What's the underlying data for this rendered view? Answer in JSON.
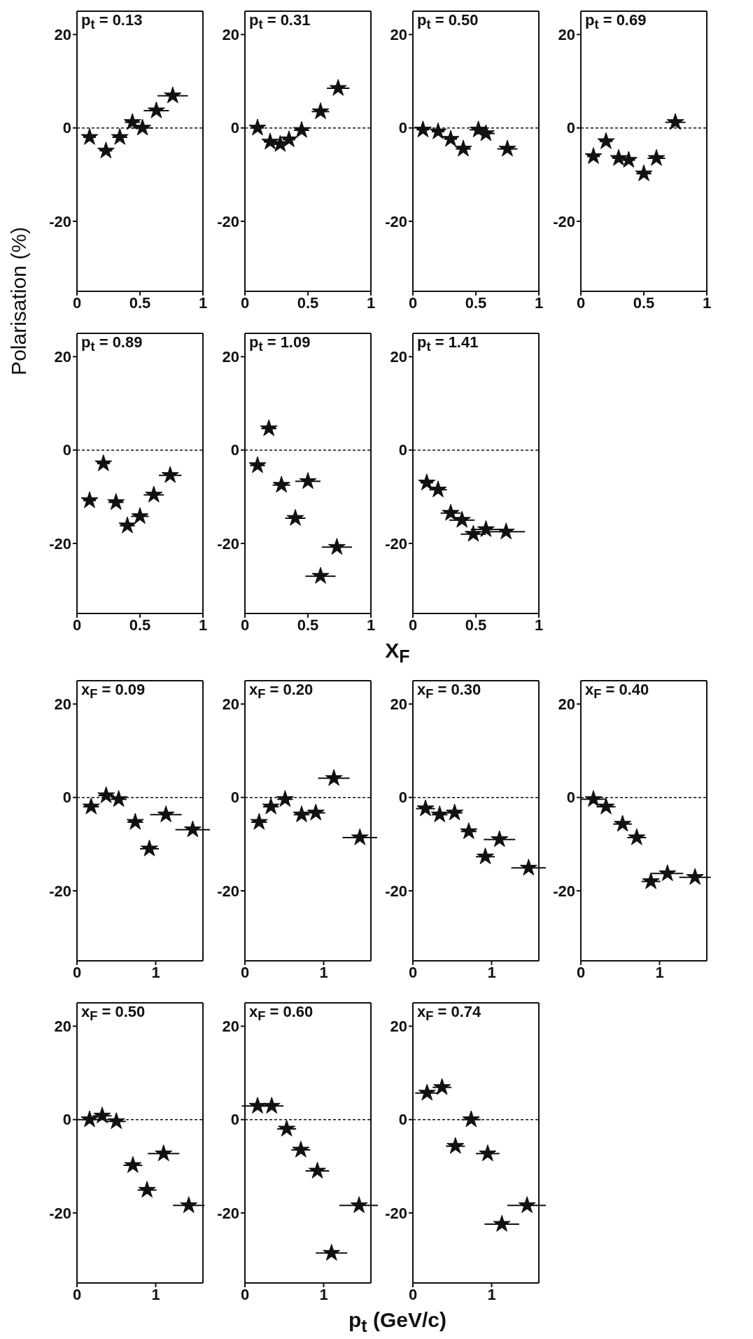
{
  "chart_data": [
    {
      "type": "scatter",
      "title": "p$_{t}$ = 0.13",
      "ylabel": "Polarisation (%)",
      "x": [
        0.1,
        0.23,
        0.34,
        0.44,
        0.52,
        0.63,
        0.76
      ],
      "values": [
        -2,
        -4.9,
        -2,
        1.2,
        0,
        3.7,
        6.9
      ],
      "xerrors": [
        0.05,
        0.05,
        0.06,
        0.06,
        0.08,
        0.1,
        0.12
      ],
      "color": "#111111",
      "marker": "star",
      "xlim": [
        0,
        1
      ],
      "ylim": [
        -35,
        25
      ],
      "xticks": [
        0,
        0.5,
        1
      ],
      "yticks": [
        20,
        0,
        -20
      ],
      "ref_lines": [
        {
          "axis": "y",
          "value": 0,
          "line_style": "dashed"
        }
      ]
    },
    {
      "type": "scatter",
      "title": "p$_{t}$ = 0.31",
      "x": [
        0.1,
        0.2,
        0.28,
        0.35,
        0.45,
        0.6,
        0.74
      ],
      "values": [
        0,
        -3,
        -3.5,
        -2.5,
        -0.5,
        3.5,
        8.5
      ],
      "xerrors": [
        0.05,
        0.05,
        0.05,
        0.05,
        0.06,
        0.07,
        0.09
      ],
      "color": "#111111",
      "marker": "star",
      "xlim": [
        0,
        1
      ],
      "ylim": [
        -35,
        25
      ],
      "xticks": [
        0,
        0.5,
        1
      ],
      "yticks": [
        20,
        0,
        -20
      ],
      "ref_lines": [
        {
          "axis": "y",
          "value": 0,
          "line_style": "dashed"
        }
      ]
    },
    {
      "type": "scatter",
      "title": "p$_{t}$ = 0.50",
      "x": [
        0.08,
        0.2,
        0.3,
        0.4,
        0.52,
        0.58,
        0.75
      ],
      "values": [
        -0.4,
        -0.8,
        -2.4,
        -4.5,
        -0.4,
        -1.2,
        -4.5
      ],
      "xerrors": [
        0.05,
        0.05,
        0.05,
        0.06,
        0.07,
        0.07,
        0.08
      ],
      "color": "#111111",
      "marker": "star",
      "xlim": [
        0,
        1
      ],
      "ylim": [
        -35,
        25
      ],
      "xticks": [
        0,
        0.5,
        1
      ],
      "yticks": [
        20,
        0,
        -20
      ],
      "ref_lines": [
        {
          "axis": "y",
          "value": 0,
          "line_style": "dashed"
        }
      ]
    },
    {
      "type": "scatter",
      "title": "p$_{t}$ = 0.69",
      "x": [
        0.1,
        0.2,
        0.3,
        0.38,
        0.5,
        0.6,
        0.75
      ],
      "values": [
        -6.1,
        -2.9,
        -6.5,
        -6.9,
        -9.8,
        -6.5,
        1.2
      ],
      "xerrors": [
        0.05,
        0.05,
        0.05,
        0.05,
        0.06,
        0.07,
        0.08
      ],
      "color": "#111111",
      "marker": "star",
      "xlim": [
        0,
        1
      ],
      "ylim": [
        -35,
        25
      ],
      "xticks": [
        0,
        0.5,
        1
      ],
      "yticks": [
        20,
        0,
        -20
      ],
      "ref_lines": [
        {
          "axis": "y",
          "value": 0,
          "line_style": "dashed"
        }
      ]
    },
    {
      "type": "scatter",
      "title": "p$_{t}$ = 0.89",
      "x": [
        0.1,
        0.21,
        0.31,
        0.4,
        0.5,
        0.61,
        0.74
      ],
      "values": [
        -10.8,
        -2.9,
        -11.2,
        -16.2,
        -14.2,
        -9.6,
        -5.4
      ],
      "xerrors": [
        0.05,
        0.05,
        0.06,
        0.06,
        0.07,
        0.08,
        0.09
      ],
      "color": "#111111",
      "marker": "star",
      "xlim": [
        0,
        1
      ],
      "ylim": [
        -35,
        25
      ],
      "xticks": [
        0,
        0.5,
        1
      ],
      "yticks": [
        20,
        0,
        -20
      ],
      "ref_lines": [
        {
          "axis": "y",
          "value": 0,
          "line_style": "dashed"
        }
      ]
    },
    {
      "type": "scatter",
      "title": "p$_{t}$ = 1.09",
      "xlabel": "X$_{F}$",
      "x": [
        0.1,
        0.19,
        0.29,
        0.4,
        0.5,
        0.6,
        0.73
      ],
      "values": [
        -3.3,
        4.6,
        -7.5,
        -14.6,
        -6.7,
        -27,
        -20.8
      ],
      "xerrors": [
        0.06,
        0.06,
        0.07,
        0.08,
        0.1,
        0.12,
        0.12
      ],
      "color": "#111111",
      "marker": "star",
      "xlim": [
        0,
        1
      ],
      "ylim": [
        -35,
        25
      ],
      "xticks": [
        0,
        0.5,
        1
      ],
      "yticks": [
        20,
        0,
        -20
      ],
      "ref_lines": [
        {
          "axis": "y",
          "value": 0,
          "line_style": "dashed"
        }
      ]
    },
    {
      "type": "scatter",
      "title": "p$_{t}$ = 1.41",
      "x": [
        0.11,
        0.2,
        0.3,
        0.39,
        0.48,
        0.58,
        0.74
      ],
      "values": [
        -7,
        -8.5,
        -13.5,
        -15,
        -18,
        -17,
        -17.5
      ],
      "xerrors": [
        0.05,
        0.07,
        0.08,
        0.1,
        0.1,
        0.12,
        0.15
      ],
      "color": "#111111",
      "marker": "star",
      "xlim": [
        0,
        1
      ],
      "ylim": [
        -35,
        25
      ],
      "xticks": [
        0,
        0.5,
        1
      ],
      "yticks": [
        20,
        0,
        -20
      ],
      "ref_lines": [
        {
          "axis": "y",
          "value": 0,
          "line_style": "dashed"
        }
      ]
    },
    {
      "type": "scatter",
      "title": "x$_{F}$ = 0.09",
      "x": [
        0.18,
        0.37,
        0.53,
        0.74,
        0.92,
        1.13,
        1.47
      ],
      "values": [
        -2,
        0.4,
        -0.4,
        -5.3,
        -11,
        -3.7,
        -6.9
      ],
      "xerrors": [
        0.1,
        0.1,
        0.1,
        0.1,
        0.12,
        0.2,
        0.22
      ],
      "color": "#111111",
      "marker": "star",
      "xlim": [
        0,
        1.6
      ],
      "ylim": [
        -35,
        25
      ],
      "xticks": [
        0,
        1
      ],
      "yticks": [
        20,
        0,
        -20
      ],
      "ref_lines": [
        {
          "axis": "y",
          "value": 0,
          "line_style": "dashed"
        }
      ]
    },
    {
      "type": "scatter",
      "title": "x$_{F}$ = 0.20",
      "x": [
        0.18,
        0.33,
        0.51,
        0.72,
        0.9,
        1.13,
        1.46
      ],
      "values": [
        -5.3,
        -2,
        -0.4,
        -3.7,
        -3.3,
        4.1,
        -8.6
      ],
      "xerrors": [
        0.1,
        0.1,
        0.1,
        0.1,
        0.12,
        0.2,
        0.22
      ],
      "color": "#111111",
      "marker": "star",
      "xlim": [
        0,
        1.6
      ],
      "ylim": [
        -35,
        25
      ],
      "xticks": [
        0,
        1
      ],
      "yticks": [
        20,
        0,
        -20
      ],
      "ref_lines": [
        {
          "axis": "y",
          "value": 0,
          "line_style": "dashed"
        }
      ]
    },
    {
      "type": "scatter",
      "title": "x$_{F}$ = 0.30",
      "x": [
        0.16,
        0.34,
        0.53,
        0.71,
        0.92,
        1.1,
        1.47
      ],
      "values": [
        -2.4,
        -3.7,
        -3.3,
        -7.3,
        -12.7,
        -9,
        -15.1
      ],
      "xerrors": [
        0.12,
        0.1,
        0.1,
        0.1,
        0.12,
        0.2,
        0.22
      ],
      "color": "#111111",
      "marker": "star",
      "xlim": [
        0,
        1.6
      ],
      "ylim": [
        -35,
        25
      ],
      "xticks": [
        0,
        1
      ],
      "yticks": [
        20,
        0,
        -20
      ],
      "ref_lines": [
        {
          "axis": "y",
          "value": 0,
          "line_style": "dashed"
        }
      ]
    },
    {
      "type": "scatter",
      "title": "x$_{F}$ = 0.40",
      "x": [
        0.16,
        0.32,
        0.53,
        0.71,
        0.89,
        1.1,
        1.45
      ],
      "values": [
        -0.4,
        -2,
        -5.7,
        -8.6,
        -18,
        -16.3,
        -17.1
      ],
      "xerrors": [
        0.15,
        0.12,
        0.12,
        0.12,
        0.12,
        0.2,
        0.2
      ],
      "color": "#111111",
      "marker": "star",
      "xlim": [
        0,
        1.6
      ],
      "ylim": [
        -35,
        25
      ],
      "xticks": [
        0,
        1
      ],
      "yticks": [
        20,
        0,
        -20
      ],
      "ref_lines": [
        {
          "axis": "y",
          "value": 0,
          "line_style": "dashed"
        }
      ]
    },
    {
      "type": "scatter",
      "title": "x$_{F}$ = 0.50",
      "x": [
        0.16,
        0.32,
        0.5,
        0.71,
        0.89,
        1.1,
        1.42
      ],
      "values": [
        0,
        0.8,
        -0.4,
        -9.8,
        -15.1,
        -7.3,
        -18.4
      ],
      "xerrors": [
        0.15,
        0.12,
        0.12,
        0.12,
        0.12,
        0.2,
        0.2
      ],
      "color": "#111111",
      "marker": "star",
      "xlim": [
        0,
        1.6
      ],
      "ylim": [
        -35,
        25
      ],
      "xticks": [
        0,
        1
      ],
      "yticks": [
        20,
        0,
        -20
      ],
      "ref_lines": [
        {
          "axis": "y",
          "value": 0,
          "line_style": "dashed"
        }
      ]
    },
    {
      "type": "scatter",
      "title": "x$_{F}$ = 0.60",
      "xlabel": "p$_{t}$ (GeV/c)",
      "x": [
        0.16,
        0.34,
        0.53,
        0.71,
        0.92,
        1.1,
        1.45
      ],
      "values": [
        2.9,
        2.9,
        -2,
        -6.5,
        -11,
        -28.6,
        -18.4
      ],
      "xerrors": [
        0.2,
        0.15,
        0.12,
        0.12,
        0.15,
        0.2,
        0.25
      ],
      "color": "#111111",
      "marker": "star",
      "xlim": [
        0,
        1.6
      ],
      "ylim": [
        -35,
        25
      ],
      "xticks": [
        0,
        1
      ],
      "yticks": [
        20,
        0,
        -20
      ],
      "ref_lines": [
        {
          "axis": "y",
          "value": 0,
          "line_style": "dashed"
        }
      ]
    },
    {
      "type": "scatter",
      "title": "x$_{F}$ = 0.74",
      "x": [
        0.18,
        0.37,
        0.54,
        0.74,
        0.95,
        1.13,
        1.45
      ],
      "values": [
        5.7,
        6.9,
        -5.7,
        0,
        -7.3,
        -22.4,
        -18.4
      ],
      "xerrors": [
        0.15,
        0.12,
        0.12,
        0.12,
        0.15,
        0.22,
        0.25
      ],
      "color": "#111111",
      "marker": "star",
      "xlim": [
        0,
        1.6
      ],
      "ylim": [
        -35,
        25
      ],
      "xticks": [
        0,
        1
      ],
      "yticks": [
        20,
        0,
        -20
      ],
      "ref_lines": [
        {
          "axis": "y",
          "value": 0,
          "line_style": "dashed"
        }
      ]
    }
  ]
}
